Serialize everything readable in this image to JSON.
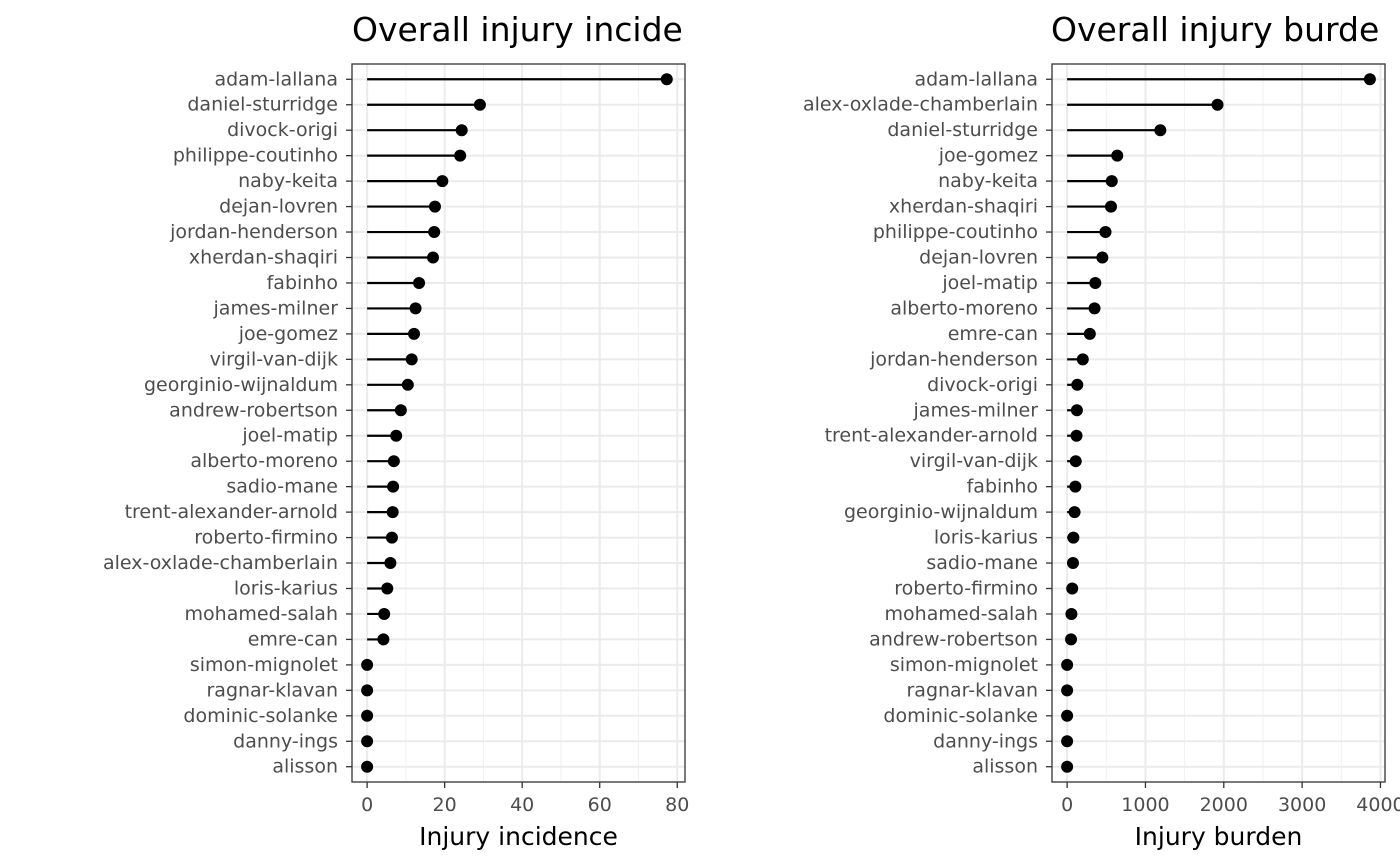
{
  "chart_data": [
    {
      "type": "lollipop",
      "title": "Overall injury incide",
      "xlabel": "Injury incidence",
      "ylabel": "",
      "xlim": [
        -3.9,
        82.0
      ],
      "xticks": [
        0,
        20,
        40,
        60,
        80
      ],
      "grid": true,
      "categories": [
        "adam-lallana",
        "daniel-sturridge",
        "divock-origi",
        "philippe-coutinho",
        "naby-keita",
        "dejan-lovren",
        "jordan-henderson",
        "xherdan-shaqiri",
        "fabinho",
        "james-milner",
        "joe-gomez",
        "virgil-van-dijk",
        "georginio-wijnaldum",
        "andrew-robertson",
        "joel-matip",
        "alberto-moreno",
        "sadio-mane",
        "trent-alexander-arnold",
        "roberto-firmino",
        "alex-oxlade-chamberlain",
        "loris-karius",
        "mohamed-salah",
        "emre-can",
        "simon-mignolet",
        "ragnar-klavan",
        "dominic-solanke",
        "danny-ings",
        "alisson"
      ],
      "values": [
        77.3,
        29.1,
        24.4,
        24.0,
        19.4,
        17.5,
        17.3,
        17.0,
        13.4,
        12.5,
        12.1,
        11.5,
        10.5,
        8.7,
        7.5,
        6.9,
        6.7,
        6.6,
        6.4,
        6.0,
        5.2,
        4.4,
        4.2,
        0,
        0,
        0,
        0,
        0
      ]
    },
    {
      "type": "lollipop",
      "title": "Overall injury burde",
      "xlabel": "Injury burden",
      "ylabel": "",
      "xlim": [
        -193,
        4058
      ],
      "xticks": [
        0,
        1000,
        2000,
        3000,
        4000
      ],
      "grid": true,
      "categories": [
        "adam-lallana",
        "alex-oxlade-chamberlain",
        "daniel-sturridge",
        "joe-gomez",
        "naby-keita",
        "xherdan-shaqiri",
        "philippe-coutinho",
        "dejan-lovren",
        "joel-matip",
        "alberto-moreno",
        "emre-can",
        "jordan-henderson",
        "divock-origi",
        "james-milner",
        "trent-alexander-arnold",
        "virgil-van-dijk",
        "fabinho",
        "georginio-wijnaldum",
        "loris-karius",
        "sadio-mane",
        "roberto-firmino",
        "mohamed-salah",
        "andrew-robertson",
        "simon-mignolet",
        "ragnar-klavan",
        "dominic-solanke",
        "danny-ings",
        "alisson"
      ],
      "values": [
        3865,
        1920,
        1190,
        640,
        570,
        560,
        490,
        450,
        360,
        350,
        290,
        200,
        130,
        125,
        120,
        110,
        105,
        95,
        80,
        75,
        65,
        55,
        50,
        0,
        0,
        0,
        0,
        0
      ]
    }
  ]
}
